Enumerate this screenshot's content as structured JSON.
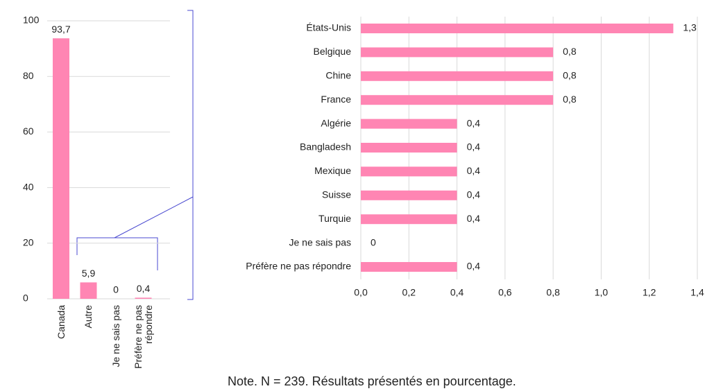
{
  "chart_data": [
    {
      "type": "bar",
      "categories": [
        "Canada",
        "Autre",
        "Je ne sais pas",
        "Préfère ne pas répondre"
      ],
      "values": [
        93.7,
        5.9,
        0,
        0.4
      ],
      "value_labels": [
        "93,7",
        "5,9",
        "0",
        "0,4"
      ],
      "color": "#ff85b3",
      "ylim": [
        0,
        100
      ],
      "yticks": [
        0,
        20,
        40,
        60,
        80,
        100
      ],
      "grid": true
    },
    {
      "type": "hbar",
      "categories": [
        "États-Unis",
        "Belgique",
        "Chine",
        "France",
        "Algérie",
        "Bangladesh",
        "Mexique",
        "Suisse",
        "Turquie",
        "Je ne sais pas",
        "Préfère ne pas répondre"
      ],
      "values": [
        1.3,
        0.8,
        0.8,
        0.8,
        0.4,
        0.4,
        0.4,
        0.4,
        0.4,
        0,
        0.4
      ],
      "value_labels": [
        "1,3",
        "0,8",
        "0,8",
        "0,8",
        "0,4",
        "0,4",
        "0,4",
        "0,4",
        "0,4",
        "0",
        "0,4"
      ],
      "color": "#ff85b3",
      "xlim": [
        0,
        1.4
      ],
      "xticks": [
        {
          "value": 0,
          "label": "0,0"
        },
        {
          "value": 0.2,
          "label": "0,2"
        },
        {
          "value": 0.4,
          "label": "0,4"
        },
        {
          "value": 0.6,
          "label": "0,6"
        },
        {
          "value": 0.8,
          "label": "0,8"
        },
        {
          "value": 1.0,
          "label": "1,0"
        },
        {
          "value": 1.2,
          "label": "1,2"
        },
        {
          "value": 1.4,
          "label": "1,4"
        }
      ],
      "grid": true
    }
  ],
  "note": "Note. N = 239. Résultats présentés en pourcentage."
}
